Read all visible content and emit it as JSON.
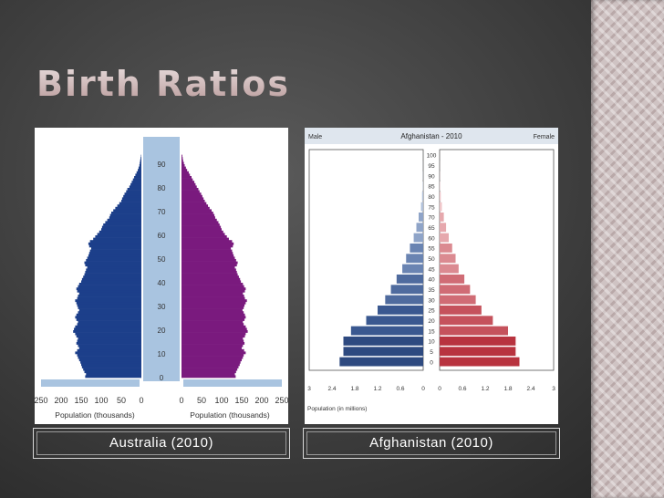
{
  "slide": {
    "title": "Birth Ratios"
  },
  "captions": {
    "left": "Australia (2010)",
    "right": "Afghanistan (2010)"
  },
  "colors": {
    "aus_male": "#1c3f8a",
    "aus_female": "#7a1a7e",
    "afg_male": "#4f6b9e",
    "afg_female": "#c5525c"
  },
  "chart_data": [
    {
      "type": "bar",
      "orientation": "horizontal-pyramid",
      "title": "",
      "xlabel_left": "Population (thousands)",
      "xlabel_right": "Population (thousands)",
      "x_ticks_left": [
        "250",
        "200",
        "150",
        "100",
        "50",
        "0"
      ],
      "x_ticks_right": [
        "0",
        "50",
        "100",
        "150",
        "200",
        "250"
      ],
      "age_ticks": [
        "0",
        "10",
        "20",
        "30",
        "40",
        "50",
        "60",
        "70",
        "80",
        "90"
      ],
      "ylim": [
        0,
        100
      ],
      "xlim": [
        0,
        250
      ],
      "series": [
        {
          "values": [
            140,
            138,
            142,
            145,
            148,
            150,
            152,
            155,
            158,
            160,
            165,
            160,
            155,
            158,
            162,
            160,
            158,
            162,
            165,
            170,
            168,
            165,
            160,
            158,
            162,
            165,
            162,
            158,
            155,
            158,
            160,
            162,
            165,
            160,
            158,
            155,
            160,
            162,
            158,
            155,
            150,
            148,
            145,
            142,
            140,
            138,
            135,
            140,
            142,
            138,
            135,
            132,
            130,
            128,
            125,
            130,
            132,
            128,
            120,
            115,
            110,
            105,
            100,
            98,
            95,
            90,
            85,
            80,
            78,
            75,
            70,
            65,
            60,
            55,
            50,
            48,
            45,
            42,
            38,
            35,
            30,
            27,
            24,
            21,
            18,
            15,
            12,
            9,
            7,
            5,
            4,
            3,
            2,
            1
          ]
        },
        {
          "values": [
            135,
            133,
            136,
            139,
            142,
            145,
            147,
            150,
            153,
            155,
            160,
            156,
            150,
            153,
            157,
            155,
            153,
            158,
            160,
            165,
            163,
            160,
            155,
            153,
            157,
            160,
            158,
            155,
            152,
            155,
            157,
            160,
            163,
            158,
            156,
            153,
            158,
            160,
            156,
            153,
            148,
            146,
            143,
            140,
            138,
            136,
            133,
            138,
            140,
            136,
            133,
            130,
            128,
            126,
            123,
            128,
            130,
            126,
            118,
            113,
            108,
            104,
            100,
            98,
            95,
            92,
            88,
            84,
            82,
            79,
            75,
            70,
            66,
            62,
            58,
            55,
            52,
            49,
            45,
            42,
            38,
            35,
            32,
            28,
            25,
            21,
            18,
            14,
            11,
            8,
            6,
            4,
            3,
            2
          ]
        }
      ],
      "base_bar_value": 250
    },
    {
      "type": "bar",
      "orientation": "horizontal-pyramid",
      "title": "Afghanistan - 2010",
      "left_label": "Male",
      "right_label": "Female",
      "xlabel": "Population (in millions)",
      "x_ticks_left": [
        "3",
        "2.4",
        "1.8",
        "1.2",
        "0.6",
        "0"
      ],
      "x_ticks_right": [
        "0",
        "0.6",
        "1.2",
        "1.8",
        "2.4",
        "3"
      ],
      "categories": [
        "0",
        "5",
        "10",
        "15",
        "20",
        "25",
        "30",
        "35",
        "40",
        "45",
        "50",
        "55",
        "60",
        "65",
        "70",
        "75",
        "80",
        "85",
        "90",
        "95",
        "100"
      ],
      "xlim": [
        0,
        3
      ],
      "series": [
        {
          "values": [
            2.2,
            2.1,
            2.1,
            1.9,
            1.5,
            1.2,
            1.0,
            0.85,
            0.7,
            0.55,
            0.45,
            0.35,
            0.25,
            0.18,
            0.12,
            0.06,
            0.03,
            0.01,
            0.005,
            0.002,
            0.001
          ]
        },
        {
          "values": [
            2.1,
            2.0,
            2.0,
            1.8,
            1.4,
            1.1,
            0.95,
            0.8,
            0.65,
            0.5,
            0.42,
            0.33,
            0.24,
            0.17,
            0.11,
            0.06,
            0.03,
            0.01,
            0.005,
            0.002,
            0.001
          ]
        }
      ]
    }
  ]
}
